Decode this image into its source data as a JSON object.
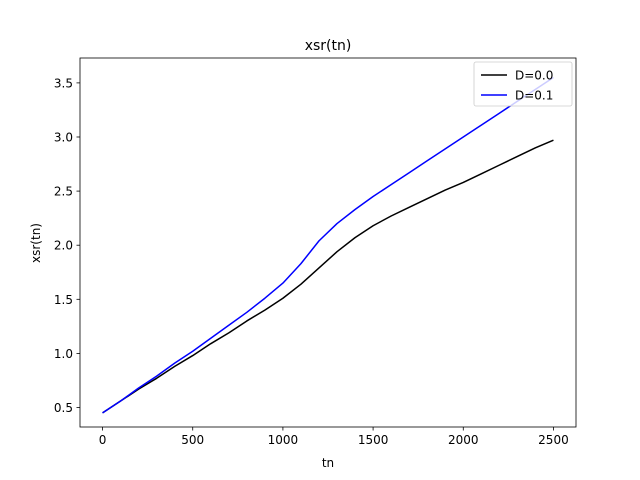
{
  "chart_data": {
    "type": "line",
    "title": "xsr(tn)",
    "xlabel": "tn",
    "ylabel": "xsr(tn)",
    "xlim": [
      -125,
      2625
    ],
    "ylim": [
      0.32,
      3.73
    ],
    "xticks": [
      0,
      500,
      1000,
      1500,
      2000,
      2500
    ],
    "yticks": [
      0.5,
      1.0,
      1.5,
      2.0,
      2.5,
      3.0,
      3.5
    ],
    "grid": false,
    "legend_position": "top-right",
    "series": [
      {
        "name": "D=0.0",
        "color": "#000000",
        "x": [
          0,
          100,
          200,
          300,
          400,
          500,
          600,
          700,
          800,
          900,
          1000,
          1100,
          1200,
          1300,
          1400,
          1500,
          1600,
          1700,
          1800,
          1900,
          2000,
          2100,
          2200,
          2300,
          2400,
          2500
        ],
        "y": [
          0.45,
          0.56,
          0.67,
          0.77,
          0.88,
          0.98,
          1.09,
          1.19,
          1.3,
          1.4,
          1.51,
          1.64,
          1.79,
          1.94,
          2.07,
          2.18,
          2.27,
          2.35,
          2.43,
          2.51,
          2.58,
          2.66,
          2.74,
          2.82,
          2.9,
          2.97
        ]
      },
      {
        "name": "D=0.1",
        "color": "#0000ff",
        "x": [
          0,
          100,
          200,
          300,
          400,
          500,
          600,
          700,
          800,
          900,
          1000,
          1100,
          1200,
          1300,
          1400,
          1500,
          1600,
          1700,
          1800,
          1900,
          2000,
          2100,
          2200,
          2300,
          2400,
          2500
        ],
        "y": [
          0.45,
          0.56,
          0.68,
          0.79,
          0.91,
          1.02,
          1.14,
          1.26,
          1.38,
          1.51,
          1.65,
          1.83,
          2.04,
          2.2,
          2.33,
          2.45,
          2.56,
          2.67,
          2.78,
          2.89,
          3.0,
          3.11,
          3.22,
          3.33,
          3.44,
          3.55
        ]
      }
    ]
  }
}
